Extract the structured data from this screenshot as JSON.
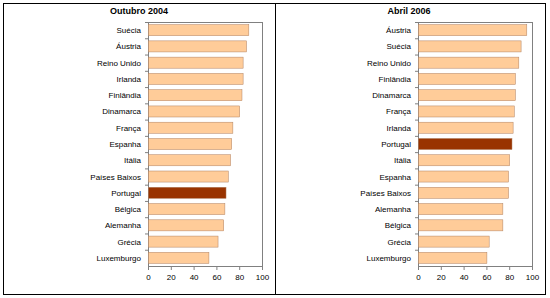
{
  "chart_data": [
    {
      "type": "bar",
      "orientation": "horizontal",
      "title": "Outubro 2004",
      "categories": [
        "Suécia",
        "Áustria",
        "Reino Unido",
        "Irlanda",
        "Finlândia",
        "Dinamarca",
        "França",
        "Espanha",
        "Itália",
        "Países Baixos",
        "Portugal",
        "Bélgica",
        "Alemanha",
        "Grécia",
        "Luxemburgo"
      ],
      "values": [
        88,
        86,
        83,
        83,
        82,
        80,
        74,
        73,
        72,
        70,
        68,
        67,
        66,
        61,
        53
      ],
      "colors": [
        "#ffcc99",
        "#ffcc99",
        "#ffcc99",
        "#ffcc99",
        "#ffcc99",
        "#ffcc99",
        "#ffcc99",
        "#ffcc99",
        "#ffcc99",
        "#ffcc99",
        "#993300",
        "#ffcc99",
        "#ffcc99",
        "#ffcc99",
        "#ffcc99"
      ],
      "xlim": [
        0,
        100
      ],
      "xticks": [
        0,
        20,
        40,
        60,
        80,
        100
      ],
      "grid": false
    },
    {
      "type": "bar",
      "orientation": "horizontal",
      "title": "Abril 2006",
      "categories": [
        "Áustria",
        "Suécia",
        "Reino Unido",
        "Finlândia",
        "Dinamarca",
        "França",
        "Irlanda",
        "Portugal",
        "Itália",
        "Espanha",
        "Países Baixos",
        "Alemanha",
        "Bélgica",
        "Grécia",
        "Luxemburgo"
      ],
      "values": [
        95,
        90,
        88,
        85,
        85,
        84,
        83,
        82,
        80,
        79,
        79,
        74,
        74,
        62,
        60
      ],
      "colors": [
        "#ffcc99",
        "#ffcc99",
        "#ffcc99",
        "#ffcc99",
        "#ffcc99",
        "#ffcc99",
        "#ffcc99",
        "#993300",
        "#ffcc99",
        "#ffcc99",
        "#ffcc99",
        "#ffcc99",
        "#ffcc99",
        "#ffcc99",
        "#ffcc99"
      ],
      "xlim": [
        0,
        100
      ],
      "xticks": [
        0,
        20,
        40,
        60,
        80,
        100
      ],
      "grid": false
    }
  ]
}
